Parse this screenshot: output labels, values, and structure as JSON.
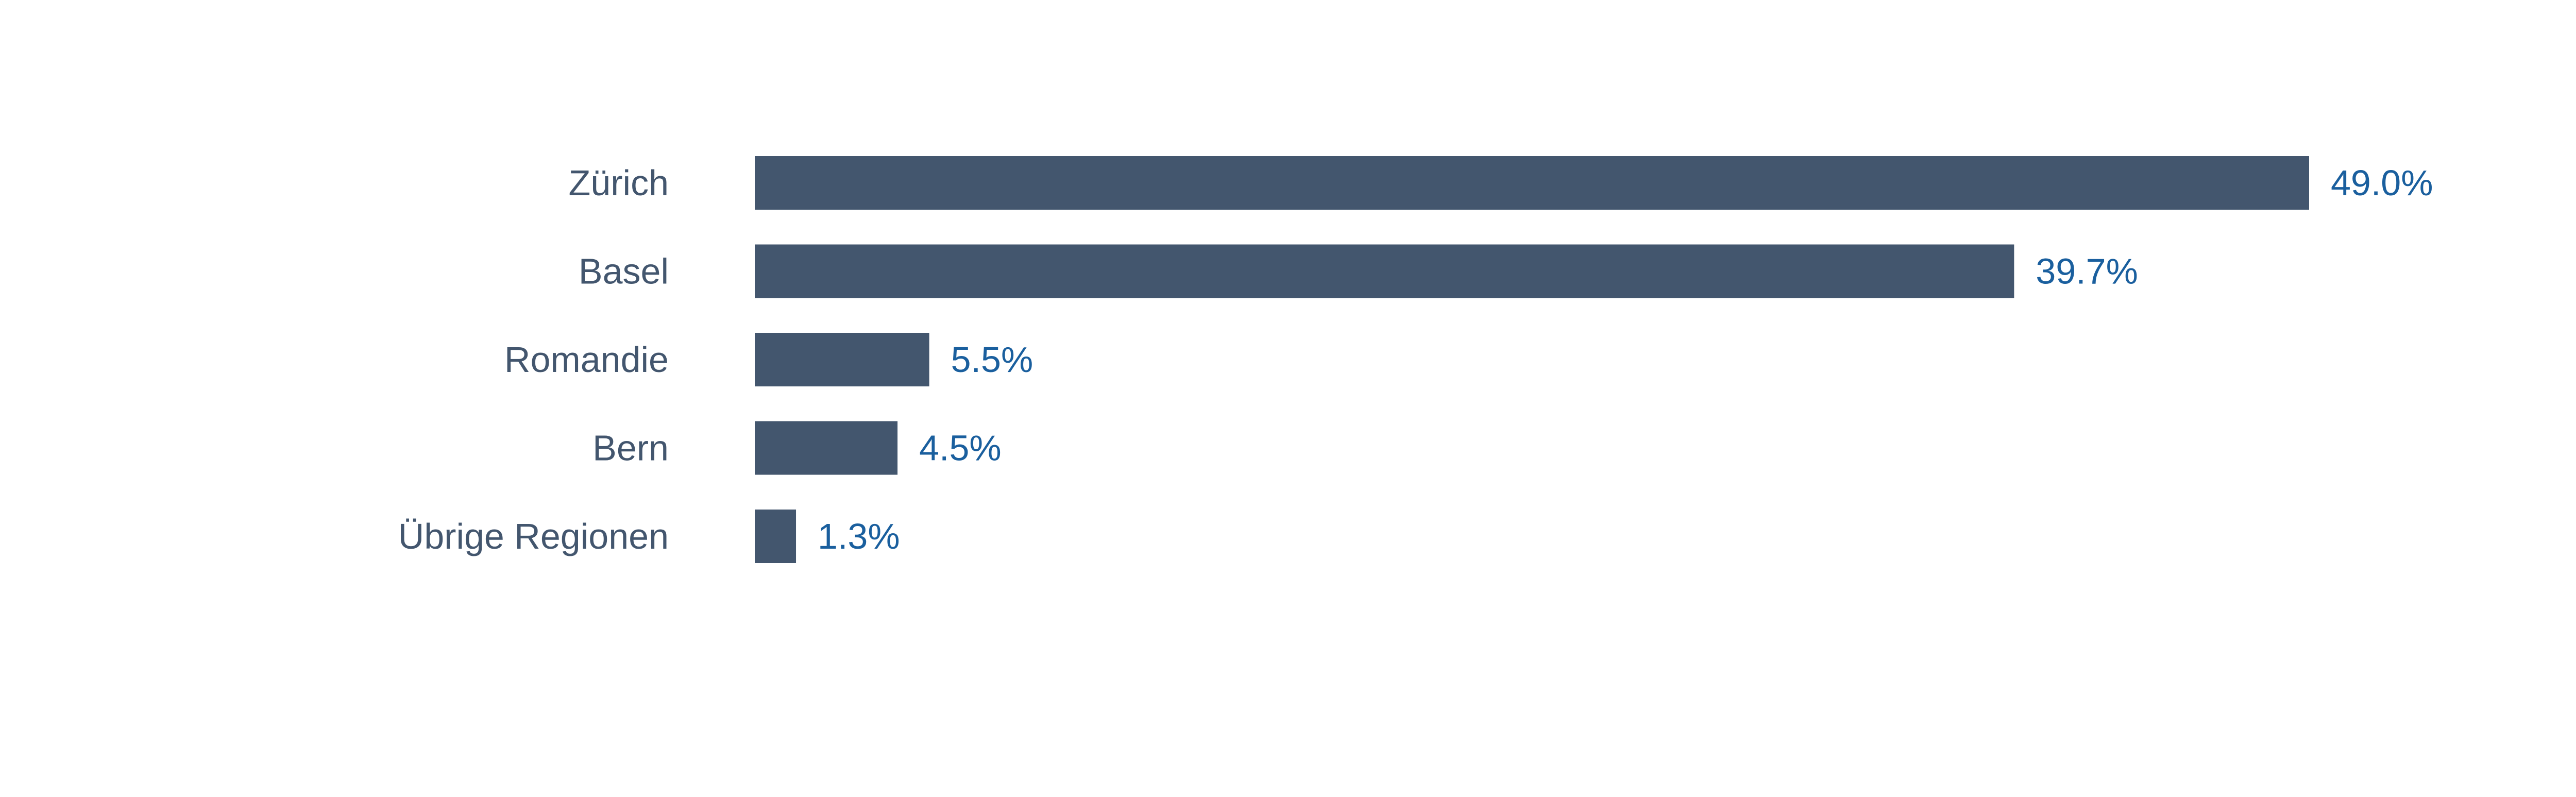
{
  "chart_data": {
    "type": "bar",
    "orientation": "horizontal",
    "categories": [
      "Zürich",
      "Basel",
      "Romandie",
      "Bern",
      "Übrige Regionen"
    ],
    "values": [
      49.0,
      39.7,
      5.5,
      4.5,
      1.3
    ],
    "value_labels": [
      "49.0%",
      "39.7%",
      "5.5%",
      "4.5%",
      "1.3%"
    ],
    "unit": "%",
    "title": "",
    "xlabel": "",
    "ylabel": "",
    "xlim": [
      0,
      49.0
    ],
    "grid": false,
    "legend": "none",
    "colors": {
      "bar": "#43566e",
      "category_label": "#43566e",
      "value_label": "#1a5f9e"
    }
  }
}
